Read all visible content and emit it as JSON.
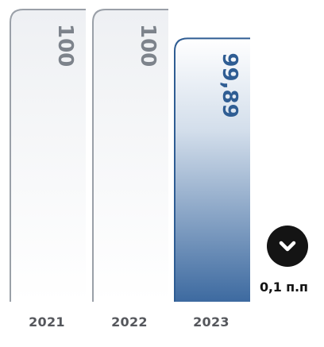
{
  "chart_data": {
    "type": "bar",
    "categories": [
      "2021",
      "2022",
      "2023"
    ],
    "values": [
      100,
      100,
      99.89
    ],
    "value_labels": [
      "100",
      "100",
      "99,89"
    ],
    "title": "",
    "xlabel": "",
    "ylabel": "",
    "grid": false,
    "legend": "none",
    "annotation": {
      "icon": "chevron-down-icon",
      "text": "0,1 п.п"
    }
  },
  "colors": {
    "old_bar_stroke": "#9aa0a8",
    "old_bar_label": "#7d838b",
    "current_bar_stroke": "#2f5d93",
    "current_bar_label": "#2f5d93",
    "year_label": "#55575c",
    "badge": "#141414"
  }
}
